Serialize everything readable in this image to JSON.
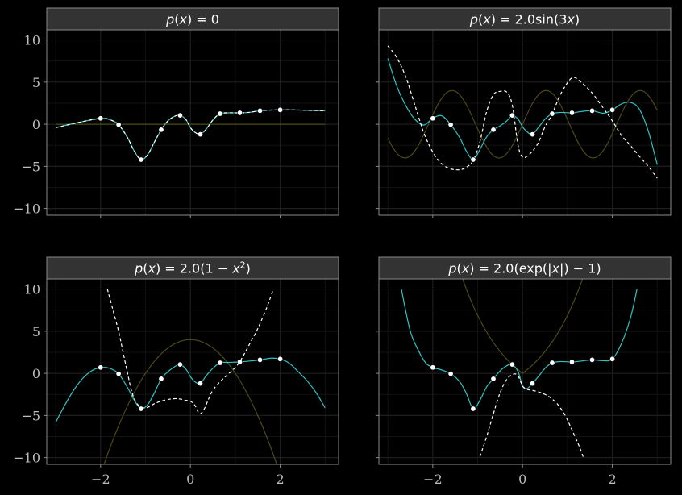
{
  "chart_data": {
    "type": "line",
    "layout": "2x2 facet grid",
    "shared_axes": true,
    "xlim": [
      -3.2,
      3.3
    ],
    "ylim": [
      -10.8,
      11.2
    ],
    "x_ticks": [
      -2,
      0,
      2
    ],
    "x_tick_labels": [
      "−2",
      "0",
      "2"
    ],
    "y_ticks": [
      -10,
      -5,
      0,
      5,
      10
    ],
    "y_tick_labels": [
      "−10",
      "−5",
      "0",
      "5",
      "10"
    ],
    "grid": true,
    "colors": {
      "fit_curve": "#2ec4c4",
      "dashed_curve": "#ffffff",
      "prior_curve": "#4d4a16",
      "points": "#ffffff",
      "strip_bg": "#333333",
      "panel_bg": "#000000",
      "grid_major": "#1e1e1e",
      "grid_minor": "#121212"
    },
    "points": {
      "x": [
        -2.0,
        -1.6,
        -1.1,
        -0.65,
        -0.23,
        0.22,
        0.66,
        1.1,
        1.55,
        2.0
      ],
      "y": [
        0.7,
        -0.05,
        -4.2,
        -0.65,
        1.05,
        -1.2,
        1.25,
        1.35,
        1.6,
        1.7
      ]
    },
    "facets": [
      {
        "title": "p(x) = 0",
        "title_parts": [
          {
            "t": "p",
            "i": true
          },
          {
            "t": "(",
            "i": false
          },
          {
            "t": "x",
            "i": true
          },
          {
            "t": ") = 0",
            "i": false
          }
        ],
        "prior": "zero",
        "fit_x": [
          -3.0,
          -2.5,
          -2.0,
          -1.8,
          -1.6,
          -1.4,
          -1.25,
          -1.1,
          -0.95,
          -0.8,
          -0.65,
          -0.5,
          -0.35,
          -0.23,
          -0.1,
          0.0,
          0.1,
          0.22,
          0.35,
          0.5,
          0.66,
          0.85,
          1.1,
          1.3,
          1.55,
          1.8,
          2.0,
          2.3,
          2.6,
          3.0
        ],
        "fit_y": [
          -0.4,
          0.2,
          0.7,
          0.55,
          -0.05,
          -1.6,
          -3.2,
          -4.2,
          -3.6,
          -2.1,
          -0.65,
          0.4,
          0.95,
          1.05,
          0.55,
          -0.4,
          -0.95,
          -1.2,
          -0.6,
          0.5,
          1.25,
          1.35,
          1.35,
          1.4,
          1.6,
          1.68,
          1.7,
          1.7,
          1.65,
          1.6
        ],
        "dashed_x": [
          -3.0,
          -2.5,
          -2.0,
          -1.8,
          -1.6,
          -1.4,
          -1.25,
          -1.1,
          -0.95,
          -0.8,
          -0.65,
          -0.5,
          -0.35,
          -0.23,
          -0.1,
          0.0,
          0.1,
          0.22,
          0.35,
          0.5,
          0.66,
          0.85,
          1.1,
          1.3,
          1.55,
          1.8,
          2.0,
          2.3,
          2.6,
          3.0
        ],
        "dashed_y": [
          -0.4,
          0.2,
          0.7,
          0.55,
          -0.05,
          -1.6,
          -3.2,
          -4.2,
          -3.6,
          -2.1,
          -0.65,
          0.4,
          0.95,
          1.05,
          0.55,
          -0.4,
          -0.95,
          -1.2,
          -0.6,
          0.5,
          1.25,
          1.35,
          1.35,
          1.4,
          1.6,
          1.68,
          1.7,
          1.7,
          1.65,
          1.6
        ]
      },
      {
        "title": "p(x) = 2.0sin(3x)",
        "title_parts": [
          {
            "t": "p",
            "i": true
          },
          {
            "t": "(",
            "i": false
          },
          {
            "t": "x",
            "i": true
          },
          {
            "t": ") = 2.0sin(3",
            "i": false
          },
          {
            "t": "x",
            "i": true
          },
          {
            "t": ")",
            "i": false
          }
        ],
        "prior": "sin",
        "fit_x": [
          -3.0,
          -2.8,
          -2.6,
          -2.4,
          -2.2,
          -2.0,
          -1.8,
          -1.6,
          -1.4,
          -1.25,
          -1.1,
          -0.95,
          -0.8,
          -0.65,
          -0.5,
          -0.35,
          -0.23,
          -0.1,
          0.0,
          0.1,
          0.22,
          0.35,
          0.5,
          0.66,
          0.85,
          1.1,
          1.3,
          1.55,
          1.8,
          2.0,
          2.2,
          2.4,
          2.6,
          2.8,
          3.0
        ],
        "fit_y": [
          7.8,
          4.5,
          2.2,
          0.6,
          -0.1,
          0.7,
          1.0,
          -0.05,
          -1.6,
          -3.2,
          -4.2,
          -3.0,
          -1.5,
          -0.65,
          -0.2,
          0.4,
          1.05,
          0.6,
          -0.3,
          -0.9,
          -1.2,
          -0.4,
          0.6,
          1.25,
          1.4,
          1.35,
          1.5,
          1.6,
          1.3,
          1.7,
          2.4,
          2.6,
          1.8,
          -0.8,
          -4.8
        ],
        "dashed_x": [
          -3.0,
          -2.8,
          -2.6,
          -2.4,
          -2.2,
          -2.0,
          -1.8,
          -1.6,
          -1.4,
          -1.25,
          -1.1,
          -0.95,
          -0.8,
          -0.65,
          -0.5,
          -0.35,
          -0.23,
          -0.1,
          0.0,
          0.1,
          0.22,
          0.35,
          0.5,
          0.66,
          0.85,
          1.1,
          1.3,
          1.55,
          1.8,
          2.0,
          2.2,
          2.4,
          2.6,
          2.8,
          3.0
        ],
        "dashed_y": [
          9.3,
          7.9,
          5.6,
          2.3,
          -1.0,
          -3.3,
          -4.7,
          -5.3,
          -5.4,
          -5.1,
          -4.3,
          -2.1,
          1.5,
          3.5,
          3.9,
          3.8,
          2.3,
          -2.5,
          -3.9,
          -3.8,
          -3.2,
          -2.2,
          -0.3,
          1.2,
          3.6,
          5.5,
          5.0,
          3.7,
          1.9,
          0.4,
          -1.3,
          -2.5,
          -3.8,
          -5.0,
          -6.4
        ]
      },
      {
        "title": "p(x) = 2.0(1 − x²)",
        "title_parts": [
          {
            "t": "p",
            "i": true
          },
          {
            "t": "(",
            "i": false
          },
          {
            "t": "x",
            "i": true
          },
          {
            "t": ") = 2.0(1 − ",
            "i": false
          },
          {
            "t": "x",
            "i": true
          },
          {
            "t": "2",
            "i": false,
            "sup": true
          },
          {
            "t": ")",
            "i": false
          }
        ],
        "prior": "parabola",
        "fit_x": [
          -3.0,
          -2.8,
          -2.6,
          -2.4,
          -2.2,
          -2.0,
          -1.8,
          -1.6,
          -1.4,
          -1.25,
          -1.1,
          -0.95,
          -0.8,
          -0.65,
          -0.5,
          -0.35,
          -0.23,
          -0.1,
          0.0,
          0.1,
          0.22,
          0.35,
          0.5,
          0.66,
          0.85,
          1.1,
          1.3,
          1.55,
          1.8,
          2.0,
          2.2,
          2.4,
          2.6,
          2.8,
          3.0
        ],
        "fit_y": [
          -5.8,
          -3.8,
          -2.0,
          -0.6,
          0.3,
          0.7,
          0.6,
          -0.05,
          -1.7,
          -3.2,
          -4.2,
          -3.7,
          -2.3,
          -0.65,
          0.2,
          0.8,
          1.05,
          0.5,
          -0.4,
          -1.0,
          -1.2,
          -0.3,
          0.6,
          1.25,
          1.3,
          1.35,
          1.45,
          1.6,
          1.8,
          1.7,
          1.2,
          0.2,
          -0.9,
          -2.3,
          -4.1
        ],
        "dashed_x": [
          -1.85,
          -1.7,
          -1.6,
          -1.5,
          -1.4,
          -1.3,
          -1.2,
          -1.1,
          -1.0,
          -0.9,
          -0.8,
          -0.65,
          -0.5,
          -0.3,
          -0.1,
          0.0,
          0.1,
          0.2,
          0.3,
          0.4,
          0.5,
          0.66,
          0.8,
          1.0,
          1.1,
          1.2,
          1.35,
          1.5,
          1.7,
          1.85
        ],
        "dashed_y": [
          10.0,
          7.0,
          5.0,
          2.5,
          0.0,
          -2.3,
          -3.5,
          -4.0,
          -4.1,
          -3.9,
          -3.6,
          -3.3,
          -3.1,
          -3.0,
          -3.2,
          -3.3,
          -3.8,
          -4.8,
          -4.3,
          -3.1,
          -2.0,
          -1.0,
          -0.3,
          0.7,
          1.4,
          2.3,
          3.8,
          5.3,
          7.8,
          10.0
        ]
      },
      {
        "title": "p(x) = 2.0(exp(|x|) − 1)",
        "title_parts": [
          {
            "t": "p",
            "i": true
          },
          {
            "t": "(",
            "i": false
          },
          {
            "t": "x",
            "i": true
          },
          {
            "t": ") = 2.0(exp(|",
            "i": false
          },
          {
            "t": "x",
            "i": true
          },
          {
            "t": "|) − 1)",
            "i": false
          }
        ],
        "prior": "exp",
        "fit_x": [
          -2.7,
          -2.5,
          -2.3,
          -2.15,
          -2.0,
          -1.8,
          -1.6,
          -1.4,
          -1.25,
          -1.1,
          -0.95,
          -0.8,
          -0.65,
          -0.5,
          -0.35,
          -0.23,
          -0.1,
          0.0,
          0.1,
          0.22,
          0.35,
          0.5,
          0.66,
          0.85,
          1.1,
          1.3,
          1.55,
          1.8,
          2.0,
          2.2,
          2.4,
          2.55
        ],
        "fit_y": [
          10.0,
          5.0,
          2.5,
          1.2,
          0.7,
          0.4,
          -0.05,
          -1.0,
          -2.4,
          -4.2,
          -3.2,
          -1.6,
          -0.65,
          0.3,
          0.9,
          1.05,
          0.2,
          -1.5,
          -1.8,
          -1.2,
          -0.4,
          0.6,
          1.25,
          1.4,
          1.35,
          1.45,
          1.6,
          1.5,
          1.7,
          3.5,
          6.5,
          10.0
        ],
        "dashed_x": [
          -0.95,
          -0.8,
          -0.65,
          -0.5,
          -0.35,
          -0.2,
          -0.1,
          0.0,
          0.1,
          0.2,
          0.35,
          0.5,
          0.65,
          0.8,
          0.95,
          1.1,
          1.25,
          1.35
        ],
        "dashed_y": [
          -9.9,
          -7.5,
          -4.8,
          -2.3,
          -0.7,
          -0.1,
          -0.3,
          -1.5,
          -1.9,
          -2.0,
          -2.2,
          -2.5,
          -3.0,
          -3.8,
          -5.0,
          -6.7,
          -8.5,
          -9.9
        ]
      }
    ]
  }
}
